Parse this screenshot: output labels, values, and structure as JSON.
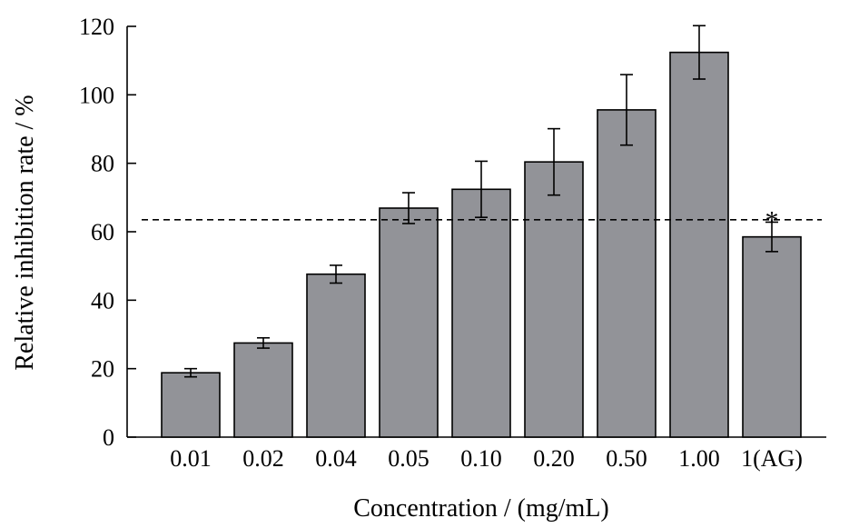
{
  "chart_data": {
    "type": "bar",
    "title": "",
    "xlabel": "Concentration / (mg/mL)",
    "ylabel": "Relative inhibition rate / %",
    "categories": [
      "0.01",
      "0.02",
      "0.04",
      "0.05",
      "0.10",
      "0.20",
      "0.50",
      "1.00",
      "1(AG)"
    ],
    "values": [
      18.8,
      27.5,
      47.6,
      66.9,
      72.4,
      80.4,
      95.6,
      112.4,
      58.5
    ],
    "errors": [
      1.2,
      1.5,
      2.6,
      4.5,
      8.2,
      9.7,
      10.3,
      7.8,
      4.3
    ],
    "ylim": [
      0,
      120
    ],
    "yticks": [
      0,
      20,
      40,
      60,
      80,
      100,
      120
    ],
    "reference_line": 63.5,
    "annotations": [
      {
        "category": "1(AG)",
        "text": "*"
      }
    ],
    "bar_color": "#929398",
    "grid": false,
    "legend": "none"
  }
}
